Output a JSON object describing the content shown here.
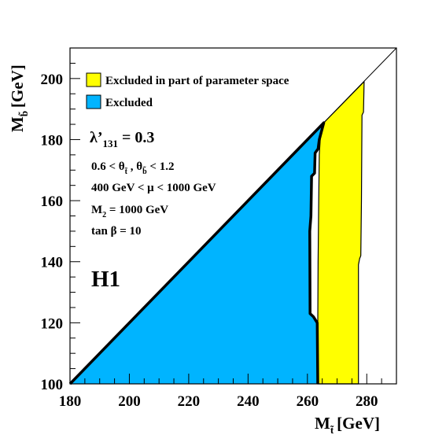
{
  "chart_data": {
    "type": "area",
    "title": "",
    "xlabel": {
      "main": "M",
      "sub": "t̃",
      "unit": "[GeV]"
    },
    "ylabel": {
      "main": "M",
      "sub": "b̃",
      "unit": "[GeV]"
    },
    "xlim": [
      180,
      290
    ],
    "ylim": [
      100,
      210
    ],
    "xticks": [
      "180",
      "200",
      "220",
      "240",
      "260",
      "280"
    ],
    "yticks": [
      "100",
      "120",
      "140",
      "160",
      "180",
      "200"
    ],
    "grid": false,
    "legend_position": "top-left",
    "experiment": "H1",
    "lambda_label": {
      "main": "λ’",
      "sub": "131",
      "rest": " = 0.3"
    },
    "parameters": {
      "theta": {
        "lead": "0.6 < θ",
        "sub1": "t̃",
        "mid": " , θ",
        "sub2": "b̃",
        "tail": " < 1.2"
      },
      "mu": "400 GeV < μ < 1000 GeV",
      "m2": {
        "main": "M",
        "sub": "2",
        "rest": " = 1000 GeV"
      },
      "tanb": "tan β = 10"
    },
    "series": [
      {
        "name": "Excluded in part of parameter space",
        "color": "#ffff00",
        "polygon": [
          [
            264.5,
            100
          ],
          [
            277.2,
            100
          ],
          [
            277.2,
            139
          ],
          [
            277.6,
            141
          ],
          [
            278,
            142
          ],
          [
            278.2,
            160
          ],
          [
            278.4,
            188
          ],
          [
            278.9,
            189
          ],
          [
            279.1,
            199
          ],
          [
            278.1,
            198
          ],
          [
            265.5,
            185.5
          ],
          [
            264.5,
            183
          ],
          [
            264,
            175
          ],
          [
            263.8,
            160
          ],
          [
            263.6,
            140
          ],
          [
            263.5,
            120
          ],
          [
            263.5,
            100
          ]
        ]
      },
      {
        "name": "Excluded",
        "color": "#00b4ff",
        "polygon": [
          [
            180,
            100
          ],
          [
            263.5,
            100
          ],
          [
            263.3,
            120
          ],
          [
            262,
            122
          ],
          [
            260.9,
            123
          ],
          [
            260.8,
            150
          ],
          [
            261.2,
            155
          ],
          [
            261.4,
            168
          ],
          [
            262.4,
            169
          ],
          [
            262.6,
            175.6
          ],
          [
            263.6,
            177
          ],
          [
            264,
            180
          ],
          [
            265.5,
            185.5
          ]
        ]
      }
    ],
    "diagonal": [
      [
        180,
        100
      ],
      [
        290,
        210
      ]
    ]
  }
}
